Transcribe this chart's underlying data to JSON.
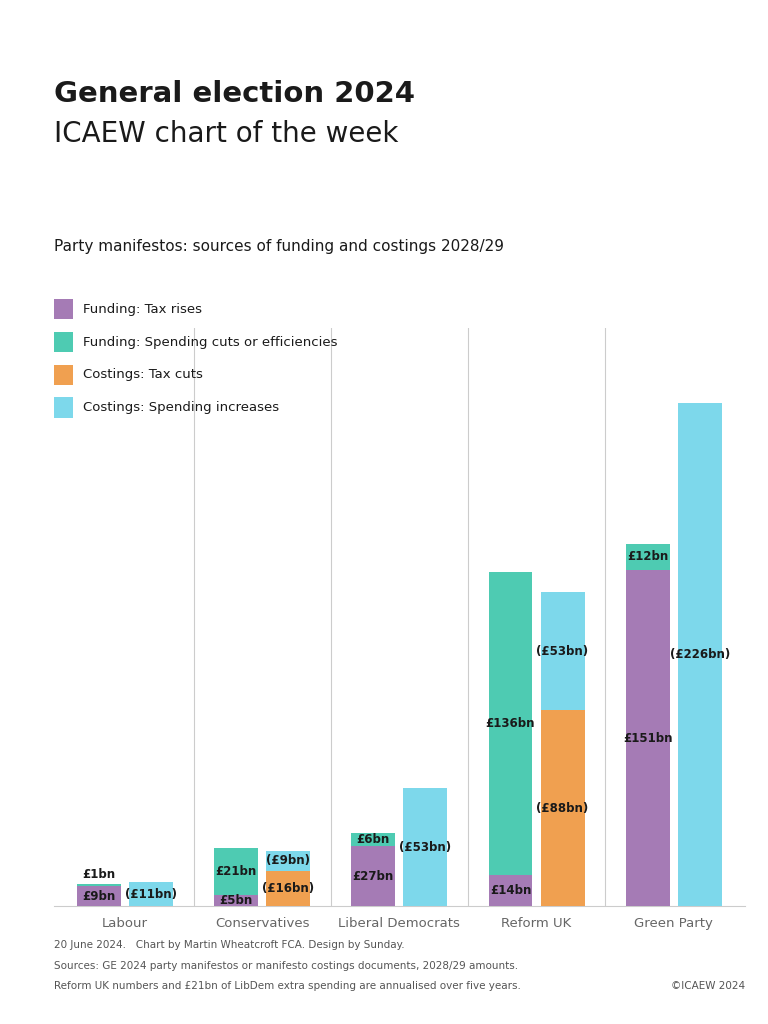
{
  "title_bold": "General election 2024",
  "title_regular": "ICAEW chart of the week",
  "subtitle": "Party manifestos: sources of funding and costings 2028/29",
  "parties": [
    "Labour",
    "Conservatives",
    "Liberal Democrats",
    "Reform UK",
    "Green Party"
  ],
  "funding": {
    "tax_rises": [
      9,
      5,
      27,
      14,
      151
    ],
    "spending_cuts": [
      1,
      21,
      6,
      136,
      12
    ]
  },
  "costings": {
    "tax_cuts": [
      0,
      16,
      0,
      88,
      0
    ],
    "spending_increases": [
      11,
      9,
      53,
      53,
      226
    ]
  },
  "colors": {
    "tax_rises": "#a57bb5",
    "spending_cuts": "#4ecbb2",
    "tax_cuts": "#f0a050",
    "spending_increases": "#7dd8eb",
    "background": "#ffffff",
    "text": "#1a1a1a",
    "separator_line": "#cccccc"
  },
  "legend": [
    {
      "label": "Funding: Tax rises",
      "color": "#a57bb5"
    },
    {
      "label": "Funding: Spending cuts or efficiencies",
      "color": "#4ecbb2"
    },
    {
      "label": "Costings: Tax cuts",
      "color": "#f0a050"
    },
    {
      "label": "Costings: Spending increases",
      "color": "#7dd8eb"
    }
  ],
  "footer_lines": [
    "20 June 2024.   Chart by Martin Wheatcroft FCA. Design by Sunday.",
    "Sources: GE 2024 party manifestos or manifesto costings documents, 2028/29 amounts.",
    "Reform UK numbers and £21bn of LibDem extra spending are annualised over five years."
  ],
  "copyright": "©ICAEW 2024",
  "ylim": 260,
  "bar_width": 0.32,
  "bar_gap": 0.06
}
